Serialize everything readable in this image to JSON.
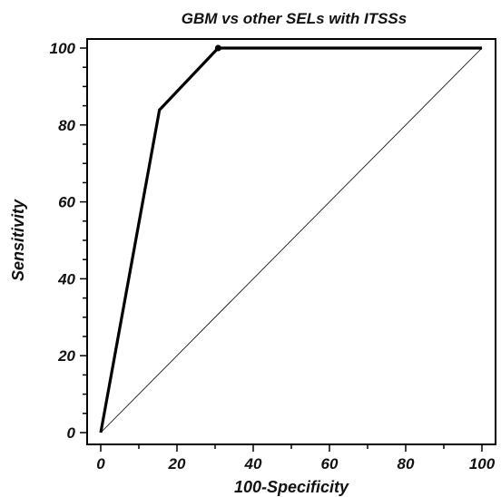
{
  "chart_data": {
    "type": "line",
    "title": "GBM vs other SELs with ITSSs",
    "xlabel": "100-Specificity",
    "ylabel": "Sensitivity",
    "xlim": [
      0,
      100
    ],
    "ylim": [
      0,
      100
    ],
    "x_ticks": [
      0,
      20,
      40,
      60,
      80,
      100
    ],
    "y_ticks": [
      0,
      20,
      40,
      60,
      80,
      100
    ],
    "x_tick_labels": [
      "0",
      "20",
      "40",
      "60",
      "80",
      "100"
    ],
    "y_tick_labels": [
      "0",
      "20",
      "40",
      "60",
      "80",
      "100"
    ],
    "grid": false,
    "legend": "none",
    "series": [
      {
        "x": [
          0,
          15.4,
          30.8,
          100
        ],
        "y": [
          0,
          83.9,
          100,
          100
        ],
        "color": "#000000",
        "marked_point": {
          "x": 30.8,
          "y": 100
        }
      },
      {
        "x": [
          0,
          100
        ],
        "y": [
          0,
          100
        ],
        "color": "#000000",
        "style": "thin"
      }
    ]
  }
}
